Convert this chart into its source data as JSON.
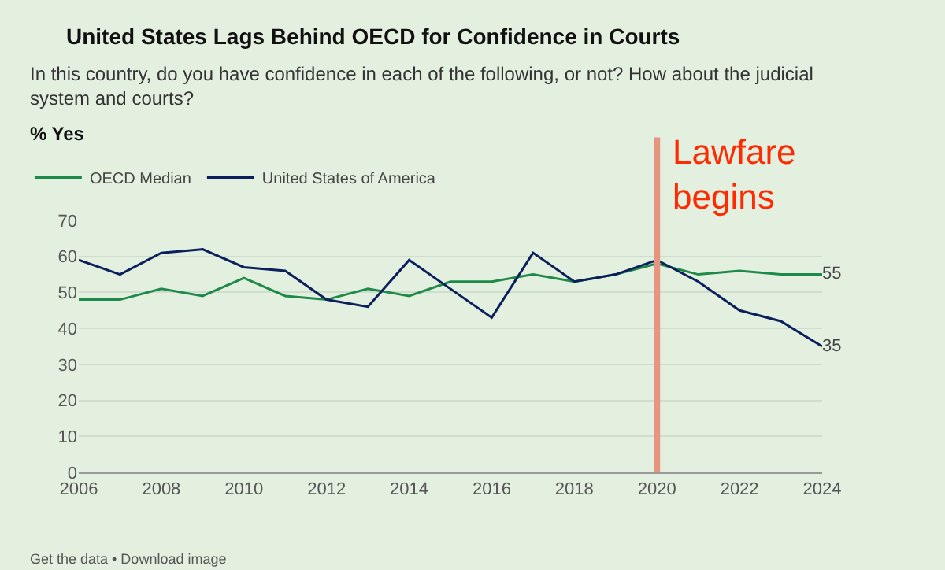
{
  "chart_data": {
    "type": "line",
    "title": "United States Lags Behind OECD for Confidence in Courts",
    "subtitle": "In this country, do you have confidence in each of the following, or not? How about the judicial system and courts?",
    "x": [
      2006,
      2007,
      2008,
      2009,
      2010,
      2011,
      2012,
      2013,
      2014,
      2015,
      2016,
      2017,
      2018,
      2019,
      2020,
      2021,
      2022,
      2023,
      2024
    ],
    "series": [
      {
        "name": "OECD Median",
        "color": "#1e8a4a",
        "values": [
          48,
          48,
          51,
          49,
          54,
          49,
          48,
          51,
          49,
          53,
          53,
          55,
          53,
          55,
          58,
          55,
          56,
          55,
          55
        ],
        "value_labels": [
          null,
          null,
          null,
          null,
          null,
          null,
          null,
          null,
          null,
          null,
          null,
          null,
          null,
          null,
          null,
          null,
          null,
          null,
          "55"
        ]
      },
      {
        "name": "United States of America",
        "color": "#0b1f5c",
        "values": [
          59,
          55,
          61,
          62,
          57,
          56,
          48,
          46,
          59,
          51,
          43,
          61,
          53,
          55,
          59,
          53,
          45,
          42,
          35
        ],
        "value_labels": [
          null,
          null,
          null,
          null,
          null,
          null,
          null,
          null,
          null,
          null,
          null,
          null,
          null,
          null,
          null,
          null,
          null,
          null,
          "35"
        ]
      }
    ],
    "xlim": [
      2006,
      2024
    ],
    "xticks": [
      2006,
      2008,
      2010,
      2012,
      2014,
      2016,
      2018,
      2020,
      2022,
      2024
    ],
    "ylim": [
      0,
      70
    ],
    "yticks": [
      0,
      10,
      20,
      30,
      40,
      50,
      60,
      70
    ],
    "ref_lines": [
      {
        "axis": "x",
        "value": 2020,
        "label": "Lawfare begins",
        "color": "#e8957f"
      }
    ],
    "annotations": [
      "% Yes",
      "Get the data • Download image"
    ],
    "grid": "y",
    "legend": "top left",
    "marker": "none",
    "line_style": "solid"
  }
}
